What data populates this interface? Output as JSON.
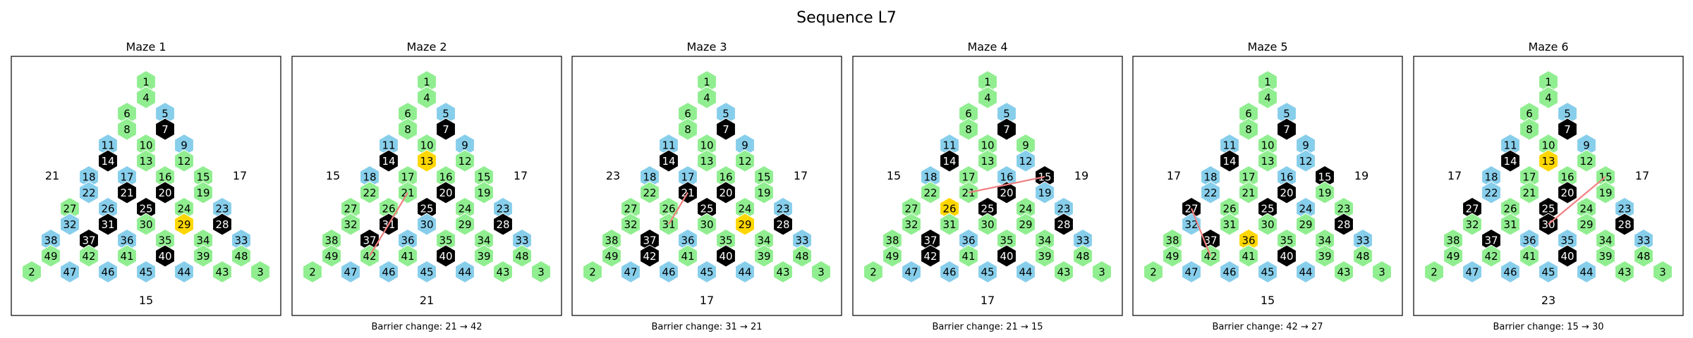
{
  "title": "Sequence L7",
  "colors": {
    "green": "#90EE90",
    "blue": "#87CEEB",
    "black": "#000000",
    "gold": "#FFD700",
    "path": "#F08080",
    "frame": "#000000"
  },
  "board": {
    "rows": [
      [
        1
      ],
      [
        4
      ],
      [
        6,
        5
      ],
      [
        8,
        7
      ],
      [
        11,
        10,
        9
      ],
      [
        14,
        13,
        12
      ],
      [
        18,
        17,
        16,
        15
      ],
      [
        22,
        21,
        20,
        19
      ],
      [
        27,
        26,
        25,
        24,
        23
      ],
      [
        32,
        31,
        30,
        29,
        28
      ],
      [
        38,
        37,
        36,
        35,
        34,
        33
      ],
      [
        49,
        42,
        41,
        40,
        39,
        48
      ],
      [
        2,
        47,
        46,
        45,
        44,
        43,
        3
      ]
    ],
    "blue": [
      5,
      9,
      11,
      17,
      18,
      22,
      23,
      26,
      32,
      33,
      36,
      30,
      38,
      47,
      46,
      45,
      44,
      16,
      12,
      19
    ],
    "black": [
      7,
      14,
      21,
      20,
      25,
      28,
      31,
      37,
      40
    ],
    "green": [
      1,
      4,
      6,
      8,
      10,
      13,
      15,
      24,
      27,
      29,
      34,
      35,
      39,
      41,
      42,
      43,
      48,
      49,
      2,
      3
    ]
  },
  "mazes": [
    {
      "title": "Maze 1",
      "left": "21",
      "right": "17",
      "bottom": "15",
      "caption": "",
      "gold": [
        29
      ],
      "blue": [
        5,
        9,
        11,
        17,
        18,
        22,
        23,
        26,
        32,
        33,
        36,
        38,
        47,
        46,
        45,
        44
      ],
      "black": [
        7,
        14,
        21,
        20,
        25,
        28,
        31,
        37,
        40
      ],
      "path": []
    },
    {
      "title": "Maze 2",
      "left": "15",
      "right": "17",
      "bottom": "21",
      "caption": "Barrier change: 21 → 42",
      "gold": [
        13
      ],
      "blue": [
        5,
        9,
        11,
        18,
        23,
        36,
        30,
        33,
        47,
        46,
        45,
        44
      ],
      "black": [
        7,
        14,
        20,
        25,
        28,
        31,
        37,
        40
      ],
      "path": [
        21,
        42
      ]
    },
    {
      "title": "Maze 3",
      "left": "23",
      "right": "17",
      "bottom": "17",
      "caption": "Barrier change: 31 → 21",
      "gold": [
        29
      ],
      "blue": [
        5,
        9,
        11,
        17,
        18,
        23,
        33,
        36,
        47,
        46,
        45,
        44
      ],
      "black": [
        7,
        14,
        21,
        20,
        25,
        28,
        37,
        42,
        40
      ],
      "path": [
        31,
        21
      ]
    },
    {
      "title": "Maze 4",
      "left": "15",
      "right": "19",
      "bottom": "17",
      "caption": "Barrier change: 21 → 15",
      "gold": [
        26
      ],
      "blue": [
        5,
        11,
        18,
        16,
        12,
        19,
        23,
        36,
        33,
        47,
        46,
        45,
        44
      ],
      "black": [
        7,
        14,
        15,
        20,
        25,
        28,
        37,
        42,
        40
      ],
      "path": [
        21,
        15
      ]
    },
    {
      "title": "Maze 5",
      "left": "17",
      "right": "19",
      "bottom": "15",
      "caption": "Barrier change: 42 → 27",
      "gold": [
        36
      ],
      "blue": [
        5,
        9,
        11,
        18,
        22,
        16,
        12,
        24,
        32,
        33,
        47,
        46,
        45,
        44
      ],
      "black": [
        7,
        14,
        15,
        20,
        25,
        27,
        28,
        37,
        40
      ],
      "path": [
        42,
        27
      ]
    },
    {
      "title": "Maze 6",
      "left": "17",
      "right": "17",
      "bottom": "23",
      "caption": "Barrier change: 15 → 30",
      "gold": [
        13
      ],
      "blue": [
        5,
        9,
        11,
        18,
        22,
        23,
        33,
        35,
        36,
        47,
        46,
        45,
        44
      ],
      "black": [
        7,
        14,
        20,
        25,
        27,
        28,
        30,
        37,
        40
      ],
      "path": [
        15,
        30
      ]
    }
  ]
}
